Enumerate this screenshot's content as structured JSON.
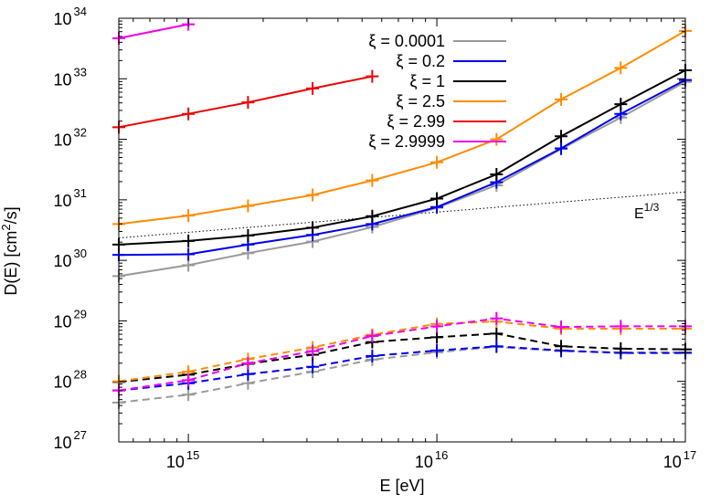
{
  "chart_data": {
    "type": "line",
    "title": "",
    "xlabel": "E [eV]",
    "ylabel": "D(E) [cm",
    "ylabel_sup": "2",
    "ylabel_end": "/s]",
    "x_scale": "log",
    "y_scale": "log",
    "xlim_log10": [
      14.72,
      17.0
    ],
    "ylim_log10": [
      27.0,
      34.0
    ],
    "x_ticks": [
      {
        "base": "10",
        "exp": "15",
        "log10": 15
      },
      {
        "base": "10",
        "exp": "16",
        "log10": 16
      },
      {
        "base": "10",
        "exp": "17",
        "log10": 17
      }
    ],
    "y_ticks": [
      {
        "base": "10",
        "exp": "27",
        "log10": 27
      },
      {
        "base": "10",
        "exp": "28",
        "log10": 28
      },
      {
        "base": "10",
        "exp": "29",
        "log10": 29
      },
      {
        "base": "10",
        "exp": "30",
        "log10": 30
      },
      {
        "base": "10",
        "exp": "31",
        "log10": 31
      },
      {
        "base": "10",
        "exp": "32",
        "log10": 32
      },
      {
        "base": "10",
        "exp": "33",
        "log10": 33
      },
      {
        "base": "10",
        "exp": "34",
        "log10": 34
      }
    ],
    "x_log10": [
      14.72,
      15.0,
      15.24,
      15.5,
      15.74,
      16.0,
      16.24,
      16.5,
      16.74,
      17.0
    ],
    "legend": {
      "placement": "top-center"
    },
    "series": [
      {
        "name": "ξ = 0.0001",
        "color": "#999999",
        "style": "solid",
        "log10_values": [
          29.74,
          29.92,
          30.12,
          30.31,
          30.55,
          30.87,
          31.24,
          31.84,
          32.36,
          32.95
        ]
      },
      {
        "name": "ξ = 0.2",
        "color": "#0000ee",
        "style": "solid",
        "log10_values": [
          30.09,
          30.1,
          30.26,
          30.42,
          30.6,
          30.88,
          31.29,
          31.85,
          32.42,
          32.98
        ]
      },
      {
        "name": "ξ = 1",
        "color": "#000000",
        "style": "solid",
        "log10_values": [
          30.26,
          30.32,
          30.41,
          30.54,
          30.73,
          31.02,
          31.42,
          32.05,
          32.58,
          33.14
        ]
      },
      {
        "name": "ξ = 2.5",
        "color": "#ff8c00",
        "style": "solid",
        "log10_values": [
          30.6,
          30.74,
          30.9,
          31.08,
          31.32,
          31.62,
          32.0,
          32.66,
          33.18,
          33.79
        ]
      },
      {
        "name": "ξ = 2.99",
        "color": "#ee0000",
        "style": "solid",
        "log10_values": [
          32.2,
          32.42,
          32.61,
          32.84,
          33.04,
          null,
          null,
          null,
          null,
          null
        ]
      },
      {
        "name": "ξ = 2.9999",
        "color": "#ee00ee",
        "style": "solid",
        "log10_values": [
          33.67,
          33.9,
          null,
          null,
          null,
          null,
          null,
          null,
          null,
          null
        ]
      },
      {
        "name": "",
        "color": "#999999",
        "style": "dashed",
        "log10_values": [
          27.65,
          27.78,
          27.97,
          28.16,
          28.36,
          28.48,
          28.57,
          28.5,
          28.48,
          28.48
        ]
      },
      {
        "name": "",
        "color": "#0000ee",
        "style": "dashed",
        "log10_values": [
          27.85,
          27.97,
          28.12,
          28.24,
          28.42,
          28.51,
          28.58,
          28.51,
          28.47,
          28.47
        ]
      },
      {
        "name": "",
        "color": "#000000",
        "style": "dashed",
        "log10_values": [
          27.99,
          28.11,
          28.29,
          28.44,
          28.65,
          28.73,
          28.79,
          28.58,
          28.54,
          28.53
        ]
      },
      {
        "name": "",
        "color": "#ff8c00",
        "style": "dashed",
        "log10_values": [
          28.0,
          28.16,
          28.37,
          28.56,
          28.77,
          28.95,
          28.99,
          28.87,
          28.87,
          28.87
        ]
      },
      {
        "name": "",
        "color": "#ee00ee",
        "style": "dashed",
        "log10_values": [
          27.85,
          28.02,
          28.3,
          28.5,
          28.75,
          28.91,
          29.04,
          28.9,
          28.91,
          28.91
        ]
      }
    ],
    "reference_line": {
      "label_base": "E",
      "label_exp": "1/3",
      "color": "#000000",
      "style": "dotted",
      "x_log10": [
        14.72,
        17.0
      ],
      "log10_values": [
        30.37,
        31.13
      ]
    }
  }
}
